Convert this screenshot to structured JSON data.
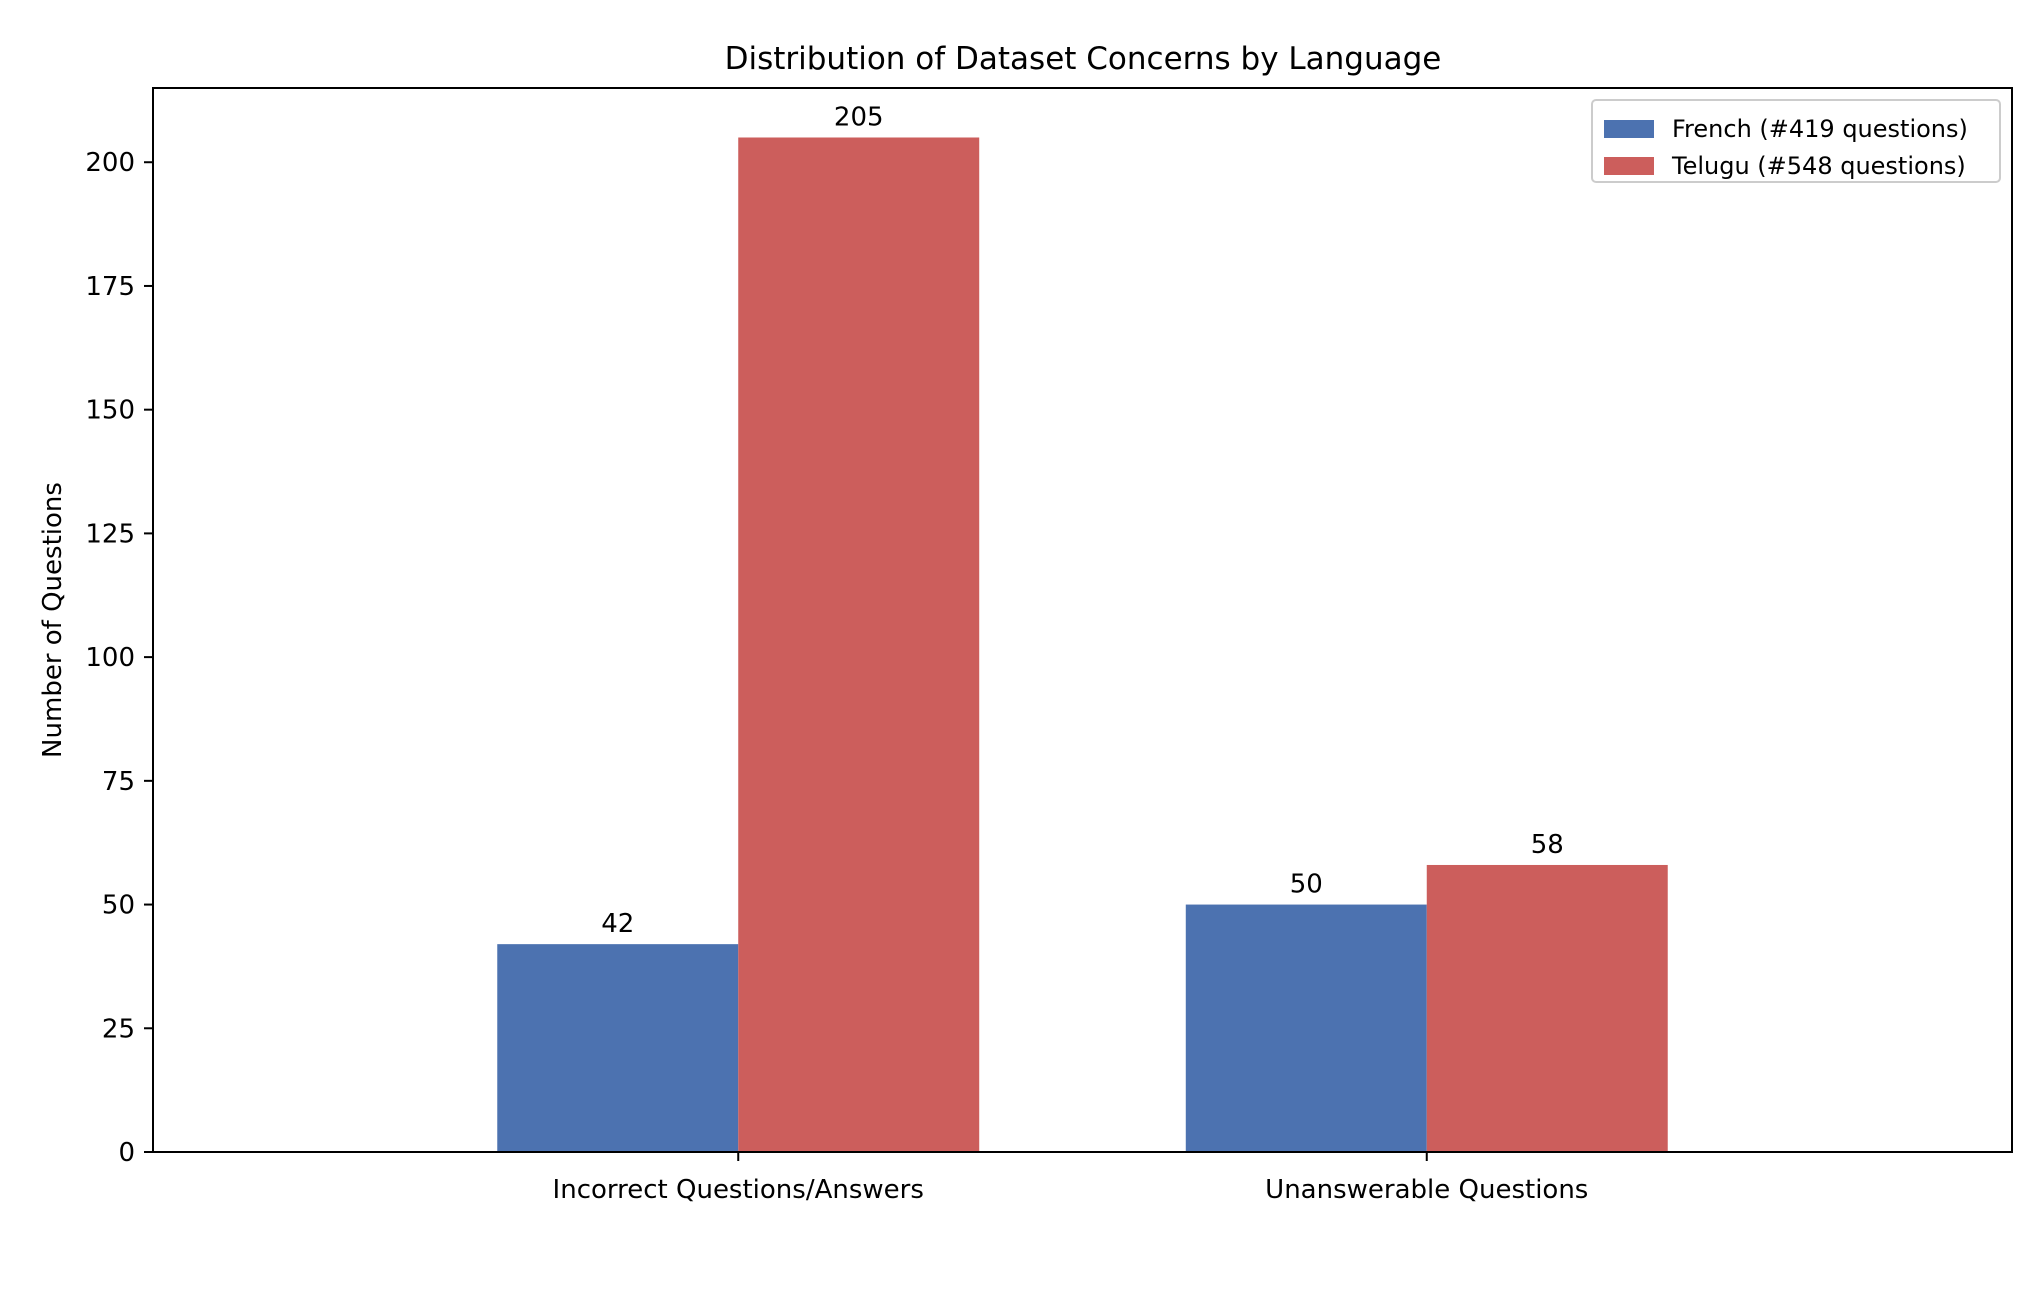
{
  "chart_data": {
    "type": "bar",
    "title": "Distribution of Dataset Concerns by Language",
    "xlabel": "",
    "ylabel": "Number of Questions",
    "categories": [
      "Incorrect Questions/Answers",
      "Unanswerable Questions"
    ],
    "series": [
      {
        "name": "French (#419 questions)",
        "values": [
          42,
          50
        ],
        "color": "#4c72b0"
      },
      {
        "name": "Telugu (#548 questions)",
        "values": [
          205,
          58
        ],
        "color": "#cc5e5c"
      }
    ],
    "ylim": [
      0,
      215
    ],
    "yticks": [
      0,
      25,
      50,
      75,
      100,
      125,
      150,
      175,
      200
    ],
    "data_labels": true,
    "grid": false,
    "legend_position": "top-right"
  }
}
